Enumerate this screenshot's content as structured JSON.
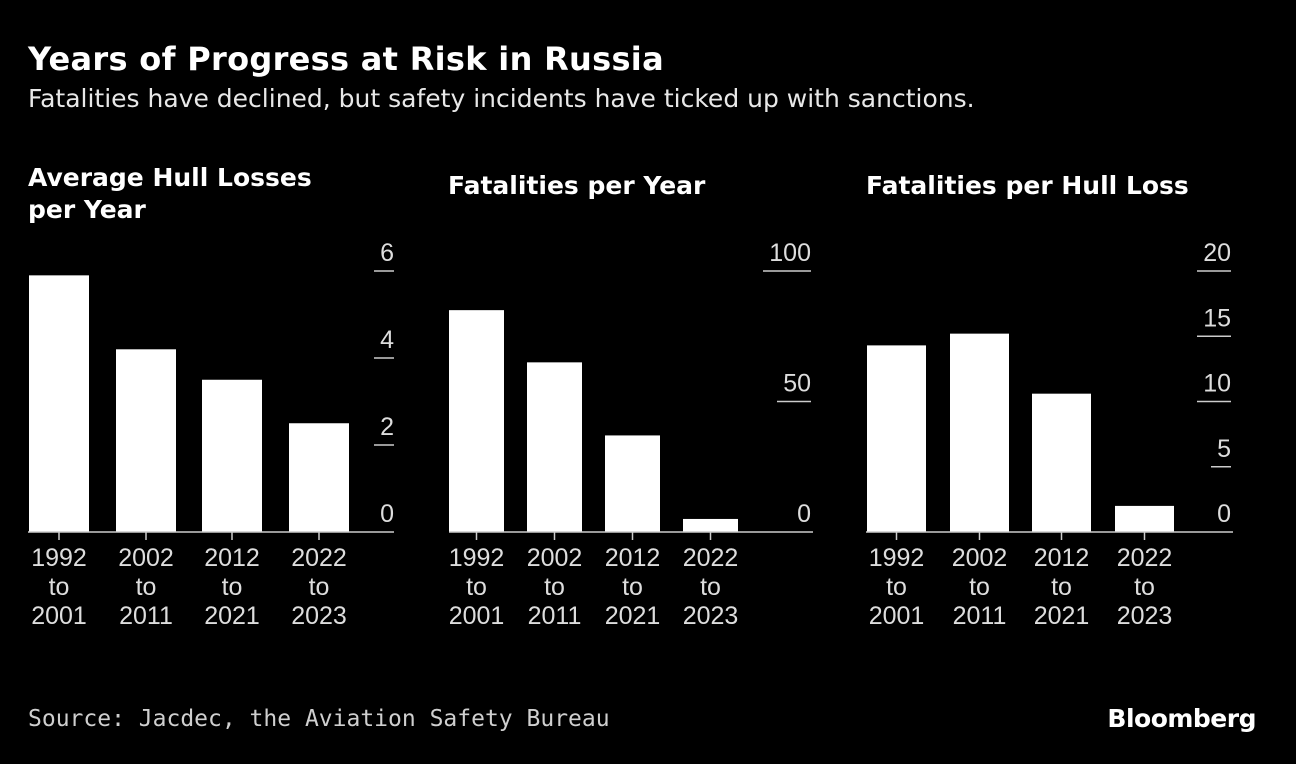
{
  "header": {
    "title": "Years of Progress at Risk in Russia",
    "subtitle": "Fatalities have declined, but safety incidents have ticked up with sanctions."
  },
  "footer": {
    "source": "Source: Jacdec, the Aviation Safety Bureau",
    "logo": "Bloomberg"
  },
  "colors": {
    "background": "#000000",
    "bar": "#ffffff",
    "axis": "#cccccc"
  },
  "chart_data": [
    {
      "type": "bar",
      "title": "Average Hull Losses per Year",
      "title_lines": [
        "Average Hull Losses",
        "per Year"
      ],
      "categories": [
        [
          "1992",
          "to",
          "2001"
        ],
        [
          "2002",
          "to",
          "2011"
        ],
        [
          "2012",
          "to",
          "2021"
        ],
        [
          "2022",
          "to",
          "2023"
        ]
      ],
      "values": [
        5.9,
        4.2,
        3.5,
        2.5
      ],
      "ylim": [
        0,
        6
      ],
      "yticks": [
        "0",
        "2",
        "4",
        "6"
      ],
      "ytick_values": [
        0,
        2,
        4,
        6
      ],
      "axis_side": "right",
      "grid": false
    },
    {
      "type": "bar",
      "title": "Fatalities per Year",
      "title_lines": [
        "Fatalities per Year"
      ],
      "categories": [
        [
          "1992",
          "to",
          "2001"
        ],
        [
          "2002",
          "to",
          "2011"
        ],
        [
          "2012",
          "to",
          "2021"
        ],
        [
          "2022",
          "to",
          "2023"
        ]
      ],
      "values": [
        85,
        65,
        37,
        5
      ],
      "ylim": [
        0,
        100
      ],
      "yticks": [
        "0",
        "50",
        "100"
      ],
      "ytick_values": [
        0,
        50,
        100
      ],
      "axis_side": "right",
      "grid": false
    },
    {
      "type": "bar",
      "title": "Fatalities per Hull Loss",
      "title_lines": [
        "Fatalities per Hull Loss"
      ],
      "categories": [
        [
          "1992",
          "to",
          "2001"
        ],
        [
          "2002",
          "to",
          "2011"
        ],
        [
          "2012",
          "to",
          "2021"
        ],
        [
          "2022",
          "to",
          "2023"
        ]
      ],
      "values": [
        14.3,
        15.2,
        10.6,
        2.0
      ],
      "ylim": [
        0,
        20
      ],
      "yticks": [
        "0",
        "5",
        "10",
        "15",
        "20"
      ],
      "ytick_values": [
        0,
        5,
        10,
        15,
        20
      ],
      "axis_side": "right",
      "grid": false
    }
  ]
}
